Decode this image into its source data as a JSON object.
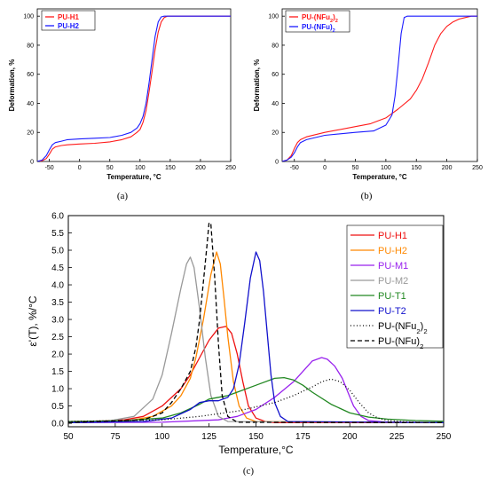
{
  "chart_data": [
    {
      "type": "line",
      "panel_label": "(a)",
      "xlabel": "Temperature, °C",
      "ylabel": "Deformation, %",
      "xlim": [
        -70,
        250
      ],
      "ylim": [
        0,
        105
      ],
      "xticks": [
        -50,
        0,
        50,
        100,
        150,
        200,
        250
      ],
      "yticks": [
        0,
        20,
        40,
        60,
        80,
        100
      ],
      "legend_position": "top-left",
      "series": [
        {
          "name": "PU-H1",
          "color": "#ff1a1a",
          "x": [
            -70,
            -62,
            -55,
            -50,
            -45,
            -40,
            -30,
            -20,
            0,
            25,
            50,
            70,
            85,
            95,
            100,
            105,
            110,
            115,
            120,
            125,
            130,
            135,
            140,
            145,
            150,
            200,
            250
          ],
          "y": [
            0,
            0.5,
            2,
            5,
            8.5,
            10,
            11,
            11.5,
            12,
            12.5,
            13.5,
            15,
            17,
            20,
            22,
            27,
            35,
            48,
            62,
            77,
            89,
            96,
            99,
            100,
            100,
            100,
            100
          ]
        },
        {
          "name": "PU-H2",
          "color": "#1a1aff",
          "x": [
            -70,
            -62,
            -55,
            -50,
            -45,
            -40,
            -30,
            -20,
            0,
            25,
            50,
            70,
            85,
            95,
            100,
            105,
            110,
            115,
            120,
            125,
            130,
            135,
            140,
            150,
            200,
            250
          ],
          "y": [
            0,
            1,
            4,
            8,
            11.5,
            13,
            14,
            15,
            15.5,
            16,
            16.5,
            18,
            20,
            23,
            26,
            31,
            40,
            54,
            70,
            86,
            96,
            99.5,
            100,
            100,
            100,
            100
          ]
        }
      ]
    },
    {
      "type": "line",
      "panel_label": "(b)",
      "xlabel": "Temperature, °C",
      "ylabel": "Deformation, %",
      "xlim": [
        -70,
        250
      ],
      "ylim": [
        0,
        105
      ],
      "xticks": [
        -50,
        0,
        50,
        100,
        150,
        200,
        250
      ],
      "yticks": [
        0,
        20,
        40,
        60,
        80,
        100
      ],
      "legend_position": "top-left",
      "series": [
        {
          "name": "PU-(NFu2)2",
          "color": "#ff1a1a",
          "x": [
            -70,
            -62,
            -55,
            -50,
            -45,
            -40,
            -30,
            0,
            50,
            75,
            100,
            120,
            140,
            150,
            160,
            170,
            180,
            190,
            200,
            210,
            220,
            230,
            240,
            250
          ],
          "y": [
            0,
            1,
            4,
            9,
            13,
            15,
            17,
            20,
            24,
            26,
            30,
            36,
            43,
            49,
            57,
            68,
            80,
            88,
            93,
            96,
            98,
            99,
            100,
            100
          ]
        },
        {
          "name": "PU-(NFu)2",
          "color": "#1a1aff",
          "x": [
            -70,
            -62,
            -55,
            -50,
            -45,
            -40,
            -30,
            0,
            50,
            80,
            100,
            110,
            115,
            120,
            125,
            130,
            135,
            150,
            200,
            250
          ],
          "y": [
            0,
            1,
            3,
            6,
            10,
            13,
            15,
            18,
            20,
            21,
            25,
            32,
            45,
            65,
            88,
            99,
            100,
            100,
            100,
            100
          ]
        }
      ]
    },
    {
      "type": "line",
      "panel_label": "(c)",
      "xlabel": "Temperature,°C",
      "ylabel": "ε'(T), %/°C",
      "xlim": [
        50,
        250
      ],
      "ylim": [
        -0.1,
        6.0
      ],
      "xticks": [
        50,
        75,
        100,
        125,
        150,
        175,
        200,
        225,
        250
      ],
      "yticks": [
        0.0,
        0.5,
        1.0,
        1.5,
        2.0,
        2.5,
        3.0,
        3.5,
        4.0,
        4.5,
        5.0,
        5.5,
        6.0
      ],
      "ytick_labels": [
        "0.0",
        "0.5",
        "1.0",
        "1.5",
        "2.0",
        "2.5",
        "3.0",
        "3.5",
        "4.0",
        "4.5",
        "5.0",
        "5.5",
        "6.0"
      ],
      "legend_position": "top-right",
      "series": [
        {
          "name": "PU-H1",
          "color": "#ee1111",
          "dash": "",
          "x": [
            50,
            70,
            80,
            90,
            100,
            110,
            115,
            120,
            125,
            130,
            134,
            137,
            140,
            143,
            146,
            150,
            155,
            160,
            250
          ],
          "y": [
            0.05,
            0.07,
            0.1,
            0.2,
            0.5,
            1.0,
            1.4,
            1.9,
            2.4,
            2.75,
            2.8,
            2.6,
            2.0,
            1.2,
            0.5,
            0.15,
            0.05,
            0.02,
            0.02
          ]
        },
        {
          "name": "PU-H2",
          "color": "#ff8800",
          "dash": "",
          "x": [
            50,
            80,
            95,
            105,
            110,
            115,
            118,
            122,
            126,
            129,
            131,
            133,
            135,
            138,
            141,
            145,
            150,
            250
          ],
          "y": [
            0.02,
            0.05,
            0.2,
            0.5,
            0.8,
            1.3,
            1.9,
            3.0,
            4.3,
            4.95,
            4.6,
            3.6,
            2.5,
            1.2,
            0.5,
            0.15,
            0.05,
            0.02
          ]
        },
        {
          "name": "PU-M1",
          "color": "#9922ee",
          "dash": "",
          "x": [
            50,
            100,
            130,
            140,
            150,
            160,
            170,
            175,
            180,
            185,
            188,
            192,
            196,
            199,
            202,
            206,
            210,
            220,
            250
          ],
          "y": [
            0.02,
            0.03,
            0.1,
            0.2,
            0.4,
            0.75,
            1.2,
            1.5,
            1.8,
            1.9,
            1.85,
            1.65,
            1.3,
            0.9,
            0.5,
            0.2,
            0.08,
            0.03,
            0.02
          ]
        },
        {
          "name": "PU-M2",
          "color": "#999999",
          "dash": "",
          "x": [
            50,
            70,
            85,
            95,
            100,
            105,
            110,
            113,
            115,
            117,
            120,
            123,
            126,
            130,
            135,
            250
          ],
          "y": [
            0.02,
            0.05,
            0.2,
            0.7,
            1.4,
            2.6,
            3.9,
            4.6,
            4.8,
            4.5,
            3.3,
            1.9,
            0.8,
            0.2,
            0.05,
            0.02
          ]
        },
        {
          "name": "PU-T1",
          "color": "#228822",
          "dash": "",
          "x": [
            50,
            80,
            100,
            110,
            120,
            125,
            130,
            135,
            140,
            150,
            160,
            165,
            170,
            175,
            180,
            190,
            200,
            210,
            220,
            235,
            250
          ],
          "y": [
            0.05,
            0.08,
            0.15,
            0.3,
            0.55,
            0.7,
            0.75,
            0.8,
            0.9,
            1.1,
            1.3,
            1.32,
            1.25,
            1.1,
            0.9,
            0.55,
            0.3,
            0.18,
            0.12,
            0.08,
            0.06
          ]
        },
        {
          "name": "PU-T2",
          "color": "#1111cc",
          "dash": "",
          "x": [
            50,
            90,
            105,
            115,
            120,
            125,
            130,
            135,
            138,
            141,
            144,
            147,
            150,
            152,
            154,
            156,
            158,
            160,
            163,
            167,
            250
          ],
          "y": [
            0.02,
            0.05,
            0.15,
            0.4,
            0.6,
            0.65,
            0.65,
            0.75,
            1.0,
            1.7,
            2.9,
            4.2,
            4.95,
            4.7,
            3.8,
            2.6,
            1.4,
            0.6,
            0.2,
            0.05,
            0.02
          ]
        },
        {
          "name": "PU-(NFu2)2",
          "color": "#000000",
          "dash": "1,2.5",
          "x": [
            50,
            100,
            120,
            140,
            160,
            170,
            180,
            185,
            190,
            195,
            200,
            205,
            210,
            215,
            220,
            230,
            240,
            250
          ],
          "y": [
            0.05,
            0.1,
            0.2,
            0.35,
            0.6,
            0.8,
            1.05,
            1.2,
            1.28,
            1.2,
            0.95,
            0.6,
            0.3,
            0.15,
            0.08,
            0.04,
            0.02,
            0.02
          ]
        },
        {
          "name": "PU-(NFu)2",
          "color": "#000000",
          "dash": "5,3",
          "x": [
            50,
            90,
            100,
            105,
            110,
            115,
            118,
            120,
            122,
            124,
            125,
            126,
            128,
            130,
            132,
            135,
            140,
            250
          ],
          "y": [
            0.02,
            0.1,
            0.3,
            0.6,
            1.0,
            1.5,
            2.2,
            3.0,
            4.1,
            5.2,
            5.8,
            5.75,
            4.2,
            2.3,
            0.8,
            0.2,
            0.03,
            0.02
          ]
        }
      ]
    }
  ]
}
